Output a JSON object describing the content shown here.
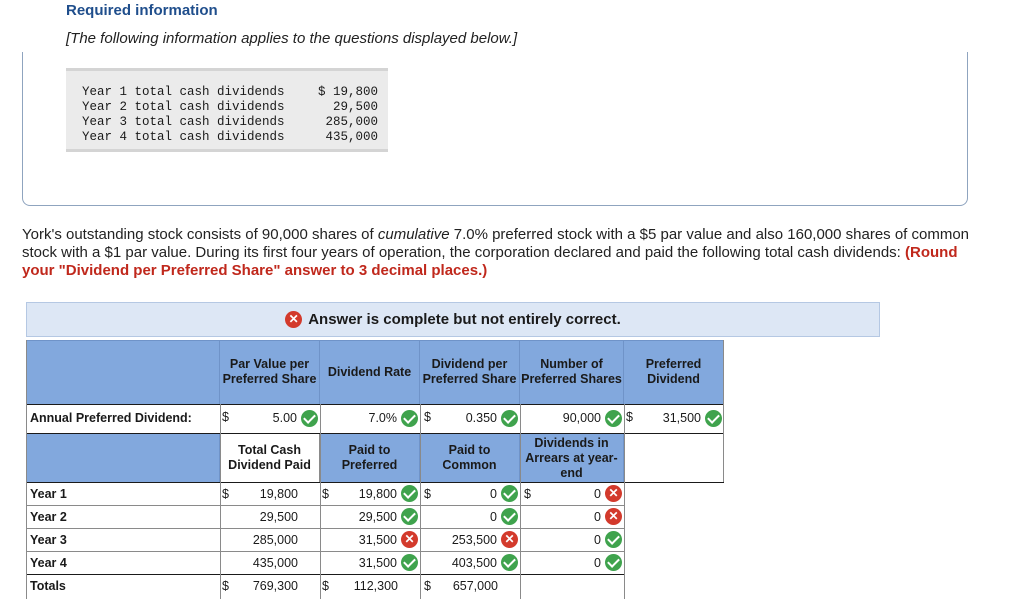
{
  "header": {
    "title": "Required information",
    "subtitle": "[The following information applies to the questions displayed below.]"
  },
  "info_table": [
    {
      "label": "Year 1 total cash dividends",
      "value": "$ 19,800"
    },
    {
      "label": "Year 2 total cash dividends",
      "value": "29,500"
    },
    {
      "label": "Year 3 total cash dividends",
      "value": "285,000"
    },
    {
      "label": "Year 4 total cash dividends",
      "value": "435,000"
    }
  ],
  "problem": {
    "part1": "York's outstanding stock consists of 90,000 shares of ",
    "italic": "cumulative",
    "part2": " 7.0% preferred stock with a $5 par value and also 160,000 shares of common stock with a $1 par value. During its first four years of operation, the corporation declared and paid the following total cash dividends: ",
    "instruction": "(Round your \"Dividend per Preferred Share\" answer to 3 decimal places.)"
  },
  "status": {
    "message": "Answer is complete but not entirely correct."
  },
  "annual": {
    "headers": [
      "Par Value per Preferred Share",
      "Dividend Rate",
      "Dividend per Preferred Share",
      "Number of Preferred Shares",
      "Preferred Dividend"
    ],
    "label": "Annual Preferred Dividend:",
    "par": "5.00",
    "rate": "7.0%",
    "per_share": "0.350",
    "shares": "90,000",
    "dividend": "31,500"
  },
  "years": {
    "headers": [
      "Total Cash Dividend Paid",
      "Paid to Preferred",
      "Paid to Common",
      "Dividends in Arrears at year-end"
    ],
    "rows": [
      {
        "label": "Year 1",
        "total": "19,800",
        "pref": "19,800",
        "pref_mark": "ok",
        "common": "0",
        "common_mark": "ok",
        "arrears": "0",
        "arrears_mark": "bad"
      },
      {
        "label": "Year 2",
        "total": "29,500",
        "pref": "29,500",
        "pref_mark": "ok",
        "common": "0",
        "common_mark": "ok",
        "arrears": "0",
        "arrears_mark": "bad"
      },
      {
        "label": "Year 3",
        "total": "285,000",
        "pref": "31,500",
        "pref_mark": "bad",
        "common": "253,500",
        "common_mark": "bad",
        "arrears": "0",
        "arrears_mark": "ok"
      },
      {
        "label": "Year 4",
        "total": "435,000",
        "pref": "31,500",
        "pref_mark": "ok",
        "common": "403,500",
        "common_mark": "ok",
        "arrears": "0",
        "arrears_mark": "ok"
      }
    ],
    "totals": {
      "label": "Totals",
      "total": "769,300",
      "pref": "112,300",
      "common": "657,000"
    }
  },
  "currency_symbol": "$",
  "colors": {
    "header_fill": "#82a8dd",
    "banner_fill": "#dde7f5",
    "correct": "#3fa34d",
    "incorrect": "#d33a2c"
  }
}
